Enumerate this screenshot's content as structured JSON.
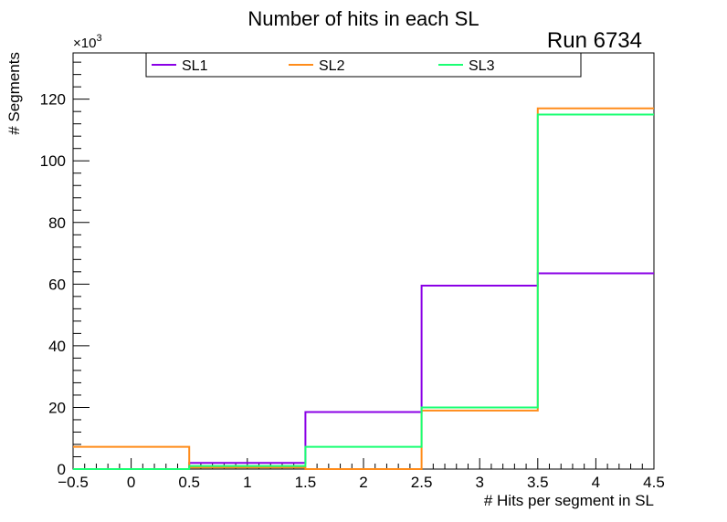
{
  "chart_data": {
    "type": "histogram-step",
    "title": "Number of hits in each SL",
    "annotation": "Run 6734",
    "xlabel": "# Hits per segment in SL",
    "ylabel": "# Segments",
    "y_multiplier_label": "×10",
    "y_multiplier_exp": "3",
    "xlim": [
      -0.5,
      4.5
    ],
    "ylim": [
      0,
      135
    ],
    "x_ticks": [
      -0.5,
      0,
      0.5,
      1,
      1.5,
      2,
      2.5,
      3,
      3.5,
      4,
      4.5
    ],
    "x_tick_labels": [
      "−0.5",
      "0",
      "0.5",
      "1",
      "1.5",
      "2",
      "2.5",
      "3",
      "3.5",
      "4",
      "4.5"
    ],
    "y_ticks": [
      0,
      20,
      40,
      60,
      80,
      100,
      120
    ],
    "y_tick_labels": [
      "0",
      "20",
      "40",
      "60",
      "80",
      "100",
      "120"
    ],
    "bin_edges": [
      -0.5,
      0.5,
      1.5,
      2.5,
      3.5,
      4.5
    ],
    "series": [
      {
        "name": "SL1",
        "color": "#8a00e6",
        "values": [
          0,
          2,
          18.5,
          59.5,
          63.5
        ]
      },
      {
        "name": "SL2",
        "color": "#ff8c1a",
        "values": [
          7.2,
          0.5,
          0,
          19,
          117
        ]
      },
      {
        "name": "SL3",
        "color": "#1aff73",
        "values": [
          0,
          1,
          7.2,
          20,
          115
        ]
      }
    ]
  }
}
